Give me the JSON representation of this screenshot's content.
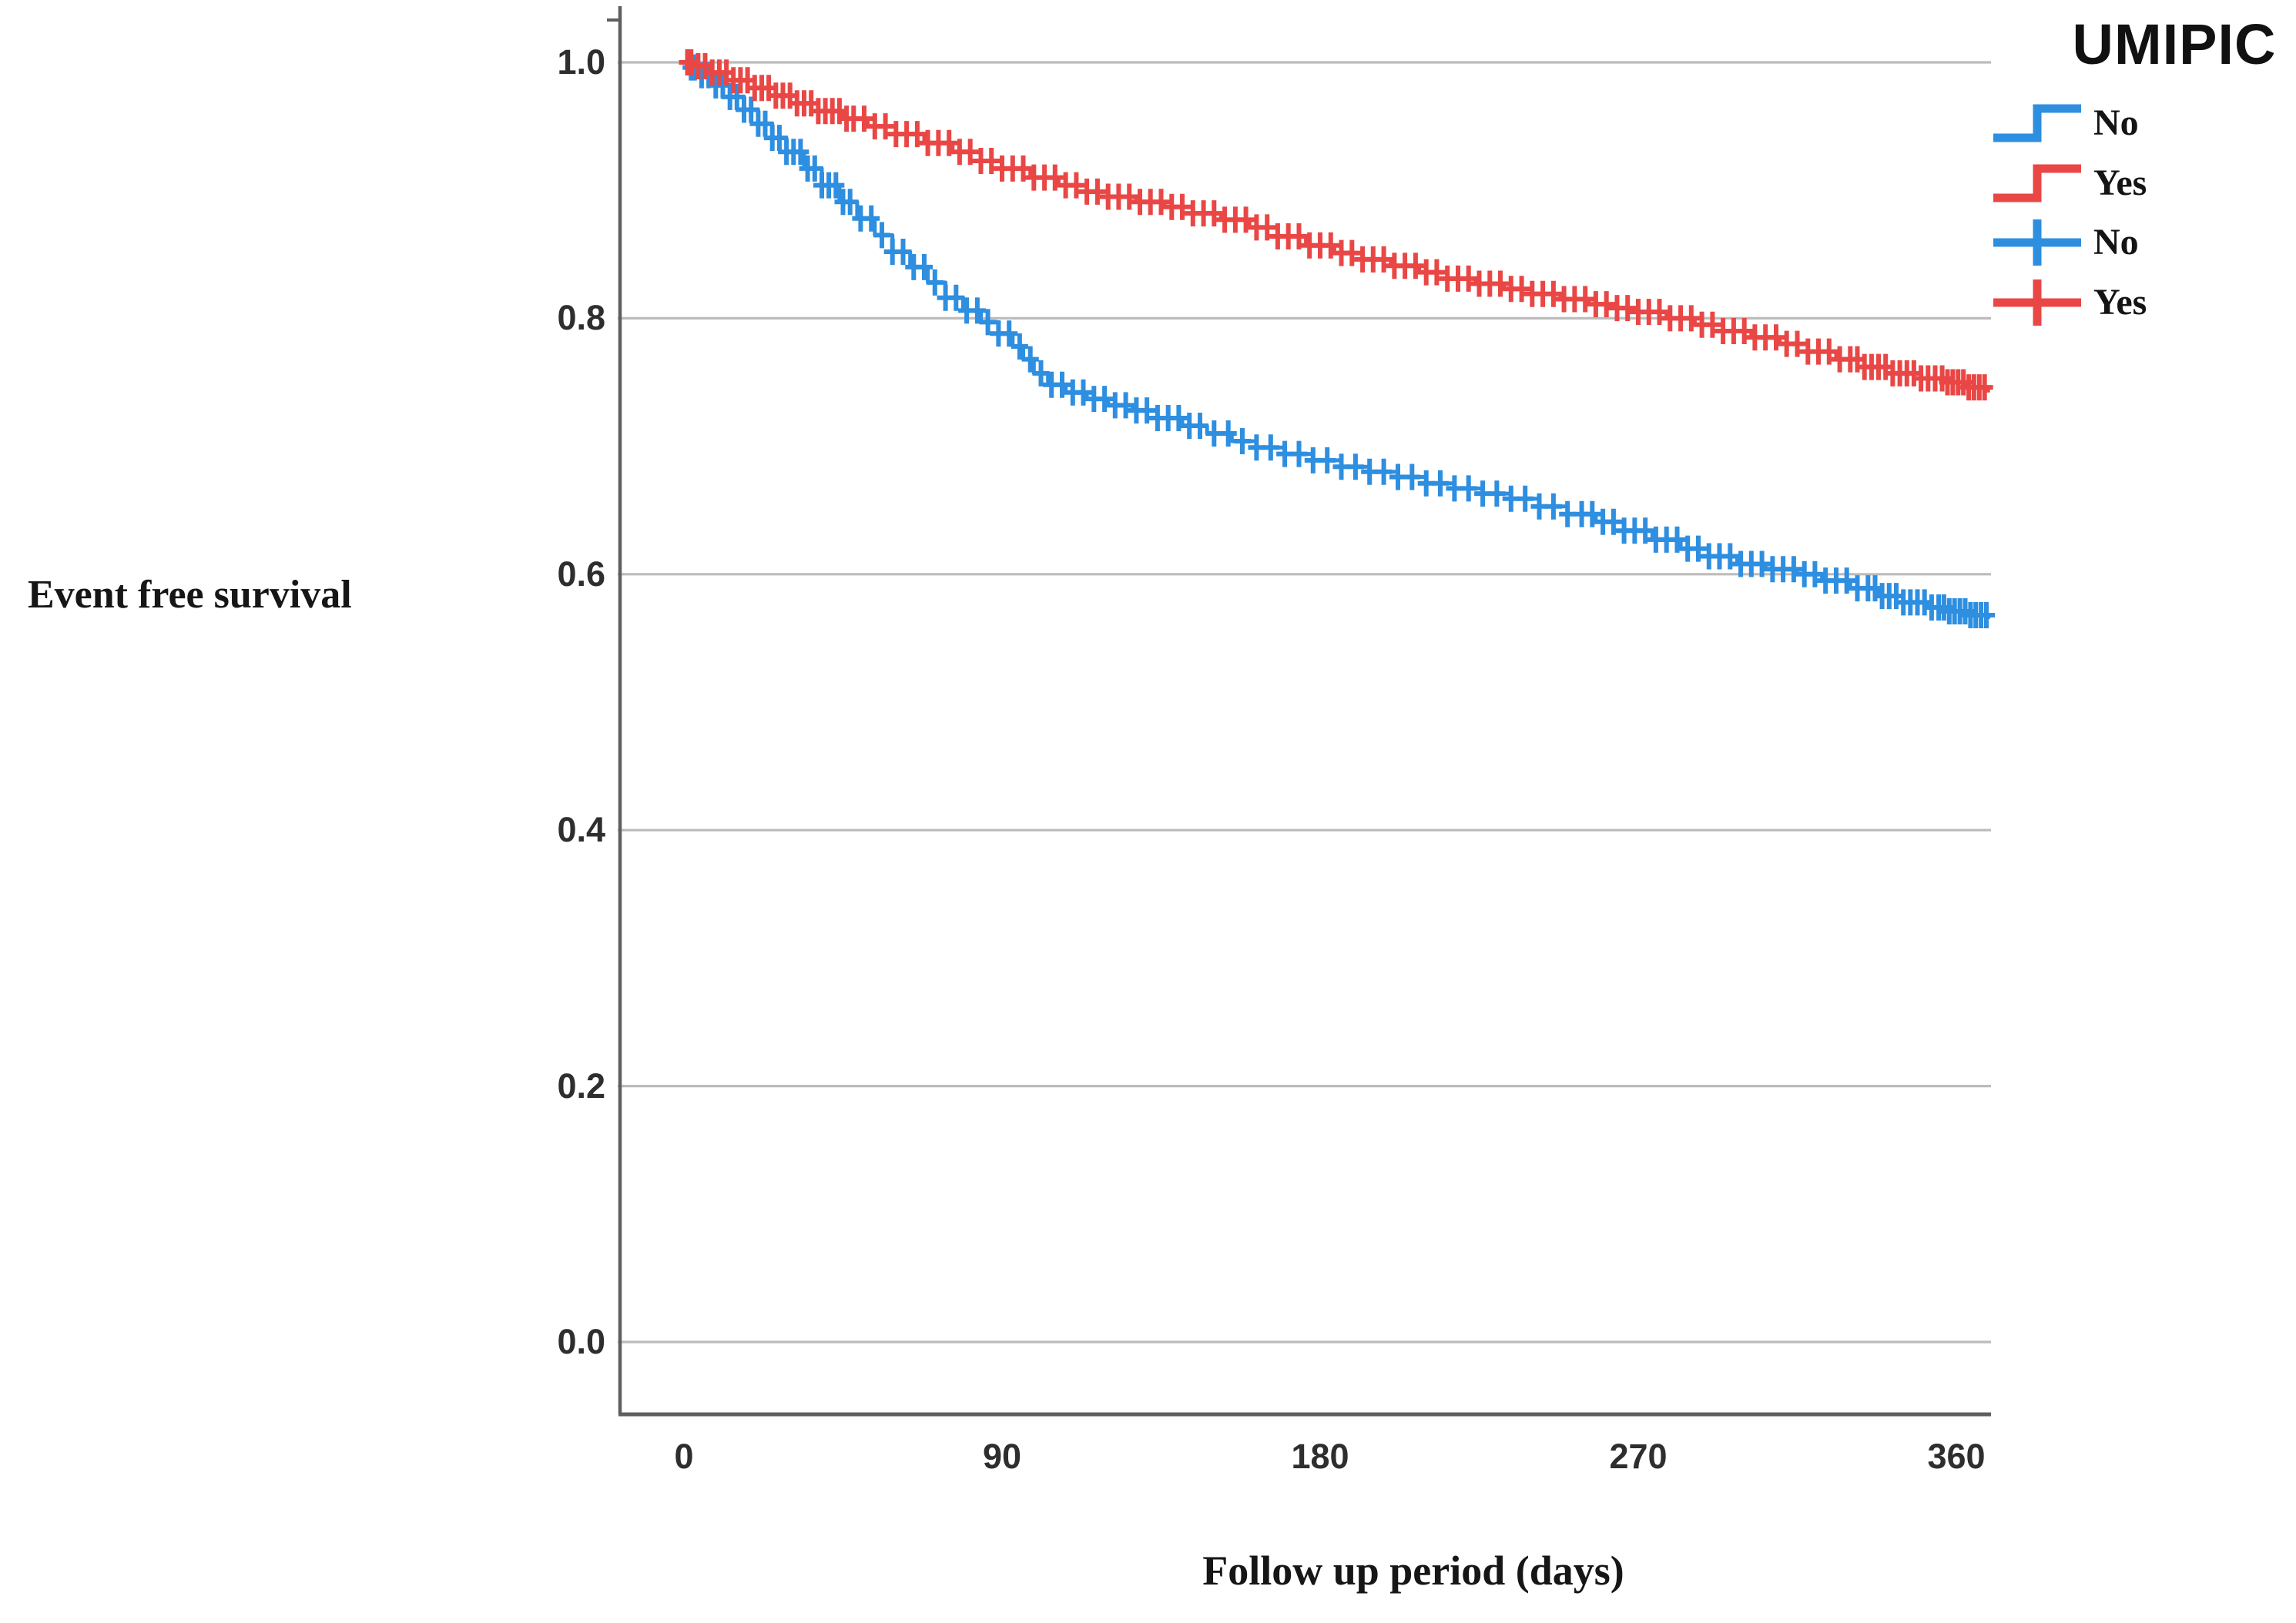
{
  "chart_data": {
    "type": "line",
    "subtype": "kaplan-meier-step-survival",
    "title": "",
    "xlabel": "Follow up period (days)",
    "ylabel": "Event free survival",
    "grid": "horizontal-only",
    "legend_position": "top-right",
    "xlim": [
      -18,
      369
    ],
    "ylim": [
      0.0,
      1.045
    ],
    "xticks": [
      {
        "value": 0,
        "label": "0"
      },
      {
        "value": 90,
        "label": "90"
      },
      {
        "value": 180,
        "label": "180"
      },
      {
        "value": 270,
        "label": "270"
      },
      {
        "value": 360,
        "label": "360"
      }
    ],
    "yticks": [
      {
        "value": 1.0,
        "label": "1.0"
      },
      {
        "value": 0.8,
        "label": "0.8"
      },
      {
        "value": 0.6,
        "label": "0.6"
      },
      {
        "value": 0.4,
        "label": "0.4"
      },
      {
        "value": 0.2,
        "label": "0.2"
      },
      {
        "value": 0.0,
        "label": "0.0"
      }
    ],
    "series": [
      {
        "name": "No",
        "color": "#2e8ee0",
        "steps": [
          [
            0,
            1.0
          ],
          [
            2,
            0.996
          ],
          [
            5,
            0.99
          ],
          [
            9,
            0.982
          ],
          [
            13,
            0.973
          ],
          [
            17,
            0.963
          ],
          [
            21,
            0.952
          ],
          [
            25,
            0.941
          ],
          [
            29,
            0.93
          ],
          [
            34,
            0.917
          ],
          [
            39,
            0.904
          ],
          [
            44,
            0.891
          ],
          [
            49,
            0.878
          ],
          [
            54,
            0.865
          ],
          [
            59,
            0.852
          ],
          [
            64,
            0.84
          ],
          [
            69,
            0.828
          ],
          [
            74,
            0.816
          ],
          [
            79,
            0.806
          ],
          [
            84,
            0.797
          ],
          [
            89,
            0.788
          ],
          [
            93,
            0.778
          ],
          [
            96,
            0.768
          ],
          [
            99,
            0.757
          ],
          [
            103,
            0.748
          ],
          [
            108,
            0.742
          ],
          [
            114,
            0.737
          ],
          [
            120,
            0.732
          ],
          [
            127,
            0.728
          ],
          [
            134,
            0.722
          ],
          [
            141,
            0.716
          ],
          [
            148,
            0.71
          ],
          [
            155,
            0.704
          ],
          [
            162,
            0.699
          ],
          [
            170,
            0.694
          ],
          [
            178,
            0.689
          ],
          [
            186,
            0.684
          ],
          [
            194,
            0.68
          ],
          [
            202,
            0.676
          ],
          [
            210,
            0.671
          ],
          [
            218,
            0.667
          ],
          [
            226,
            0.663
          ],
          [
            234,
            0.659
          ],
          [
            242,
            0.653
          ],
          [
            250,
            0.647
          ],
          [
            258,
            0.641
          ],
          [
            266,
            0.634
          ],
          [
            274,
            0.627
          ],
          [
            282,
            0.62
          ],
          [
            290,
            0.614
          ],
          [
            298,
            0.608
          ],
          [
            306,
            0.604
          ],
          [
            315,
            0.6
          ],
          [
            322,
            0.595
          ],
          [
            330,
            0.589
          ],
          [
            338,
            0.583
          ],
          [
            345,
            0.578
          ],
          [
            352,
            0.574
          ],
          [
            358,
            0.571
          ],
          [
            363,
            0.568
          ],
          [
            369,
            0.565
          ]
        ],
        "censor_times": [
          1,
          2,
          3,
          5,
          7,
          9,
          11,
          13,
          15,
          17,
          19,
          21,
          23,
          25,
          27,
          29,
          31,
          33,
          35,
          37,
          39,
          41,
          43,
          45,
          47,
          50,
          53,
          56,
          59,
          62,
          65,
          68,
          71,
          74,
          77,
          80,
          83,
          86,
          89,
          92,
          95,
          98,
          101,
          104,
          107,
          110,
          113,
          116,
          119,
          122,
          125,
          128,
          131,
          134,
          137,
          140,
          143,
          146,
          150,
          154,
          158,
          162,
          166,
          170,
          174,
          178,
          182,
          186,
          190,
          194,
          198,
          202,
          206,
          210,
          214,
          218,
          222,
          226,
          230,
          234,
          238,
          242,
          246,
          250,
          254,
          257,
          260,
          263,
          266,
          269,
          272,
          275,
          278,
          281,
          284,
          287,
          290,
          293,
          296,
          299,
          302,
          305,
          308,
          311,
          314,
          317,
          320,
          323,
          326,
          329,
          332,
          335,
          337,
          339,
          341,
          343,
          345,
          347,
          349,
          351,
          353,
          355,
          356.5,
          358,
          359.5,
          361,
          362.5,
          364,
          365.5,
          367,
          368.5
        ]
      },
      {
        "name": "Yes",
        "color": "#e94745",
        "steps": [
          [
            0,
            1.0
          ],
          [
            3,
            0.997
          ],
          [
            8,
            0.992
          ],
          [
            14,
            0.986
          ],
          [
            20,
            0.98
          ],
          [
            26,
            0.974
          ],
          [
            32,
            0.968
          ],
          [
            38,
            0.962
          ],
          [
            45,
            0.956
          ],
          [
            52,
            0.95
          ],
          [
            60,
            0.944
          ],
          [
            68,
            0.937
          ],
          [
            76,
            0.93
          ],
          [
            84,
            0.923
          ],
          [
            90,
            0.917
          ],
          [
            98,
            0.91
          ],
          [
            106,
            0.904
          ],
          [
            114,
            0.899
          ],
          [
            120,
            0.895
          ],
          [
            128,
            0.891
          ],
          [
            136,
            0.887
          ],
          [
            144,
            0.882
          ],
          [
            152,
            0.877
          ],
          [
            160,
            0.871
          ],
          [
            168,
            0.864
          ],
          [
            176,
            0.857
          ],
          [
            184,
            0.851
          ],
          [
            192,
            0.846
          ],
          [
            200,
            0.841
          ],
          [
            208,
            0.836
          ],
          [
            216,
            0.831
          ],
          [
            224,
            0.827
          ],
          [
            232,
            0.823
          ],
          [
            240,
            0.819
          ],
          [
            248,
            0.815
          ],
          [
            256,
            0.811
          ],
          [
            264,
            0.808
          ],
          [
            270,
            0.805
          ],
          [
            278,
            0.8
          ],
          [
            286,
            0.795
          ],
          [
            294,
            0.79
          ],
          [
            302,
            0.785
          ],
          [
            310,
            0.78
          ],
          [
            318,
            0.774
          ],
          [
            326,
            0.768
          ],
          [
            334,
            0.762
          ],
          [
            342,
            0.757
          ],
          [
            350,
            0.753
          ],
          [
            357,
            0.75
          ],
          [
            363,
            0.746
          ],
          [
            369,
            0.742
          ]
        ],
        "censor_times": [
          1,
          2,
          4,
          6,
          8,
          10,
          12,
          14,
          16,
          18,
          20,
          22,
          24,
          26,
          28,
          30,
          32,
          34,
          36,
          38,
          40,
          42,
          44,
          46,
          48,
          51,
          54,
          57,
          60,
          63,
          66,
          69,
          72,
          75,
          78,
          81,
          84,
          87,
          90,
          93,
          96,
          99,
          102,
          105,
          108,
          111,
          114,
          117,
          120,
          123,
          126,
          129,
          132,
          135,
          138,
          141,
          144,
          147,
          150,
          153,
          156,
          159,
          162,
          165,
          168,
          171,
          174,
          177,
          180,
          183,
          186,
          189,
          192,
          195,
          198,
          201,
          204,
          207,
          210,
          213,
          216,
          219,
          222,
          225,
          228,
          231,
          234,
          237,
          240,
          243,
          246,
          249,
          252,
          255,
          258,
          261,
          264,
          267,
          270,
          273,
          276,
          279,
          282,
          285,
          288,
          291,
          294,
          297,
          300,
          303,
          306,
          309,
          312,
          315,
          318,
          321,
          324,
          327,
          330,
          332,
          334,
          336,
          338,
          340,
          342,
          344,
          346,
          348,
          350,
          352,
          354,
          356,
          357.5,
          359,
          360.5,
          362,
          363.5,
          365,
          366.5,
          368
        ]
      }
    ]
  },
  "legend": {
    "title": "UMIPIC",
    "entries": [
      {
        "label": "No",
        "color": "#2e8ee0",
        "marker": "step"
      },
      {
        "label": "Yes",
        "color": "#e94745",
        "marker": "step"
      },
      {
        "label": "No",
        "color": "#2e8ee0",
        "marker": "plus"
      },
      {
        "label": "Yes",
        "color": "#e94745",
        "marker": "plus"
      }
    ]
  },
  "colors": {
    "gridline": "#bcbcbc",
    "axis": "#5f5f5f",
    "tick_text": "#2e2e2e",
    "title_text": "#161616"
  }
}
